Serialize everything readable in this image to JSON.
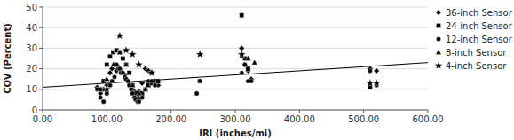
{
  "chart_data": {
    "type": "scatter",
    "xlabel": "IRI (inches/mi)",
    "ylabel": "COV (Percent)",
    "xlim": [
      0,
      600
    ],
    "ylim": [
      0,
      50
    ],
    "xticks": [
      {
        "value": 0,
        "label": "0.00"
      },
      {
        "value": 100,
        "label": "100.00"
      },
      {
        "value": 200,
        "label": "200.00"
      },
      {
        "value": 300,
        "label": "300.00"
      },
      {
        "value": 400,
        "label": "400.00"
      },
      {
        "value": 500,
        "label": "500.00"
      },
      {
        "value": 600,
        "label": "600.00"
      }
    ],
    "yticks": [
      0,
      10,
      20,
      30,
      40,
      50
    ],
    "grid": "y",
    "legend": "right",
    "series": [
      {
        "name": "36-inch Sensor",
        "marker": "diamond",
        "color": "black",
        "x": [
          85,
          90,
          95,
          100,
          105,
          108,
          112,
          115,
          118,
          120,
          122,
          125,
          128,
          130,
          133,
          135,
          138,
          140,
          143,
          145,
          148,
          150,
          155,
          160,
          165,
          170,
          175,
          180,
          310,
          315,
          320,
          325,
          510,
          520
        ],
        "values": [
          11,
          8,
          10,
          12,
          18,
          20,
          22,
          19,
          21,
          20,
          19,
          18,
          17,
          15,
          14,
          13,
          12,
          10,
          9,
          8,
          7,
          9,
          13,
          20,
          19,
          18,
          14,
          12,
          30,
          22,
          19,
          15,
          20,
          19
        ]
      },
      {
        "name": "24-inch Sensor",
        "marker": "square",
        "color": "black",
        "x": [
          90,
          95,
          100,
          105,
          110,
          115,
          120,
          125,
          130,
          135,
          140,
          145,
          150,
          155,
          160,
          165,
          170,
          175,
          180,
          245,
          310,
          315,
          320,
          510
        ],
        "values": [
          10,
          14,
          22,
          26,
          28,
          29,
          28,
          25,
          22,
          18,
          12,
          8,
          5,
          8,
          10,
          12,
          13,
          14,
          14,
          14,
          46,
          25,
          20,
          11
        ]
      },
      {
        "name": "12-inch Sensor",
        "marker": "circle",
        "color": "black",
        "x": [
          85,
          90,
          95,
          100,
          105,
          108,
          112,
          115,
          118,
          120,
          122,
          125,
          128,
          130,
          133,
          135,
          138,
          140,
          143,
          145,
          148,
          150,
          155,
          160,
          165,
          170,
          175,
          240,
          245,
          310,
          315,
          320,
          325,
          510,
          520
        ],
        "values": [
          10,
          6,
          4,
          8,
          12,
          14,
          16,
          22,
          20,
          20,
          18,
          18,
          16,
          15,
          14,
          12,
          10,
          8,
          6,
          5,
          4,
          4,
          6,
          10,
          14,
          14,
          12,
          8,
          14,
          18,
          22,
          14,
          14,
          19,
          12
        ]
      },
      {
        "name": "8-inch Sensor",
        "marker": "triangle",
        "color": "black",
        "x": [
          90,
          100,
          110,
          120,
          130,
          140,
          150,
          160,
          310,
          320,
          330
        ],
        "values": [
          10,
          15,
          22,
          28,
          22,
          12,
          8,
          10,
          26,
          25,
          23
        ]
      },
      {
        "name": "4-inch Sensor",
        "marker": "star",
        "color": "black",
        "x": [
          100,
          120,
          130,
          140,
          150,
          170,
          245,
          310,
          510,
          520
        ],
        "values": [
          10,
          36,
          29,
          27,
          22,
          18,
          27,
          27,
          13,
          13
        ]
      },
      {
        "type": "line",
        "color": "black",
        "x": [
          0,
          600
        ],
        "values": [
          11,
          23
        ]
      }
    ]
  }
}
